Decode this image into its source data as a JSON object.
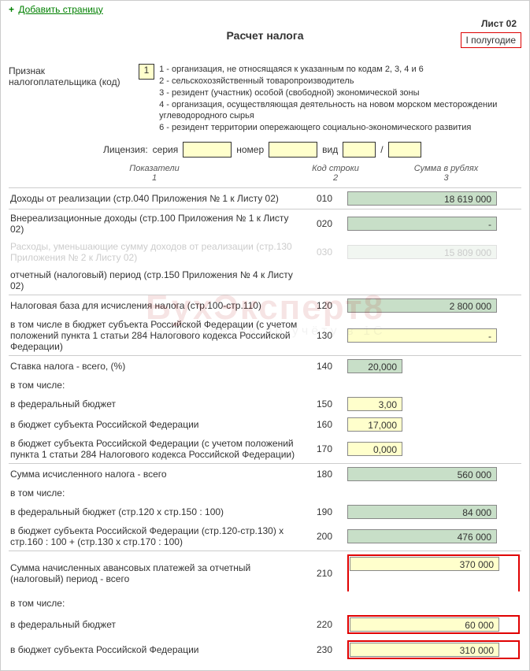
{
  "header": {
    "add_page": "Добавить страницу",
    "title": "Расчет налога",
    "sheet": "Лист 02",
    "period": "I полугодие"
  },
  "taxpayer": {
    "label": "Признак налогоплательщика (код)",
    "code": "1",
    "notes": [
      "1 - организация, не относящаяся к указанным по кодам 2, 3, 4 и 6",
      "2 - сельскохозяйственный товаропроизводитель",
      "3 - резидент (участник) особой (свободной) экономической зоны",
      "4 - организация, осуществляющая деятельность на новом морском месторождении углеводородного сырья",
      "6 - резидент территории опережающего социально-экономического развития"
    ]
  },
  "license": {
    "label": "Лицензия:",
    "series": "серия",
    "number": "номер",
    "kind": "вид",
    "slash": "/"
  },
  "columns": {
    "c1": "Показатели",
    "c1n": "1",
    "c2": "Код строки",
    "c2n": "2",
    "c3": "Сумма в рублях",
    "c3n": "3"
  },
  "rows": [
    {
      "desc": "Доходы от реализации (стр.040 Приложения № 1 к Листу 02)",
      "code": "010",
      "val": "18 619 000",
      "cls": "green",
      "w": "full",
      "sep": true
    },
    {
      "desc": "Внереализационные доходы (стр.100 Приложения № 1 к Листу 02)",
      "code": "020",
      "val": "-",
      "cls": "green",
      "w": "full",
      "sep": true
    },
    {
      "desc": "Расходы, уменьшающие сумму доходов от реализации (стр.130 Приложения № 2 к Листу 02)",
      "code": "030",
      "val": "15 809 000",
      "cls": "green",
      "w": "full",
      "faded": true
    },
    {
      "desc": "отчетный (налоговый) период (стр.150 Приложения № 4 к Листу 02)",
      "code": "",
      "val": "",
      "cls": "",
      "w": "",
      "note_only": true
    },
    {
      "desc": "Налоговая база для исчисления налога  (стр.100-стр.110)",
      "code": "120",
      "val": "2 800 000",
      "cls": "green",
      "w": "full",
      "sep": true
    },
    {
      "desc": "в том числе в бюджет субъекта Российской Федерации (с учетом положений пункта 1 статьи 284 Налогового кодекса Российской Федерации)",
      "code": "130",
      "val": "-",
      "cls": "yellow",
      "w": "full",
      "indent": true
    },
    {
      "desc": "Ставка налога - всего, (%)",
      "code": "140",
      "val": "20,000",
      "cls": "green",
      "w": "short",
      "sep": true
    },
    {
      "desc": "в том числе:",
      "code": "",
      "val": "",
      "indent": true
    },
    {
      "desc": "в федеральный бюджет",
      "code": "150",
      "val": "3,00",
      "cls": "yellow",
      "w": "short",
      "indent": true
    },
    {
      "desc": "в бюджет субъекта Российской Федерации",
      "code": "160",
      "val": "17,000",
      "cls": "yellow",
      "w": "short",
      "indent": true
    },
    {
      "desc": "в бюджет субъекта Российской Федерации (с учетом положений пункта 1 статьи 284 Налогового кодекса Российской Федерации)",
      "code": "170",
      "val": "0,000",
      "cls": "yellow",
      "w": "short",
      "indent": true
    },
    {
      "desc": "Сумма исчисленного налога - всего",
      "code": "180",
      "val": "560 000",
      "cls": "green",
      "w": "full",
      "sep": true
    },
    {
      "desc": "в том числе:",
      "code": "",
      "val": "",
      "indent": true
    },
    {
      "desc": "в федеральный бюджет (стр.120 x стр.150 : 100)",
      "code": "190",
      "val": "84 000",
      "cls": "green",
      "w": "full",
      "indent": true
    },
    {
      "desc": "в бюджет субъекта Российской Федерации (стр.120-стр.130) x стр.160 : 100 + (стр.130 x стр.170 : 100)",
      "code": "200",
      "val": "476 000",
      "cls": "green",
      "w": "full",
      "indent": true
    },
    {
      "desc": "Сумма начисленных авансовых платежей за отчетный (налоговый) период - всего",
      "code": "210",
      "val": "370 000",
      "cls": "yellow",
      "w": "full",
      "sep": true,
      "hi": "stack"
    },
    {
      "desc": "в том числе:",
      "code": "",
      "val": "",
      "indent": true
    },
    {
      "desc": "в федеральный бюджет",
      "code": "220",
      "val": "60 000",
      "cls": "yellow",
      "w": "full",
      "indent": true,
      "hi": "box"
    },
    {
      "desc": "в бюджет субъекта Российской Федерации",
      "code": "230",
      "val": "310 000",
      "cls": "yellow",
      "w": "full",
      "indent": true,
      "hi": "box"
    }
  ],
  "watermark": {
    "line1": "БухЭксперт8",
    "line2": "База ответов по учёту в 1С"
  }
}
